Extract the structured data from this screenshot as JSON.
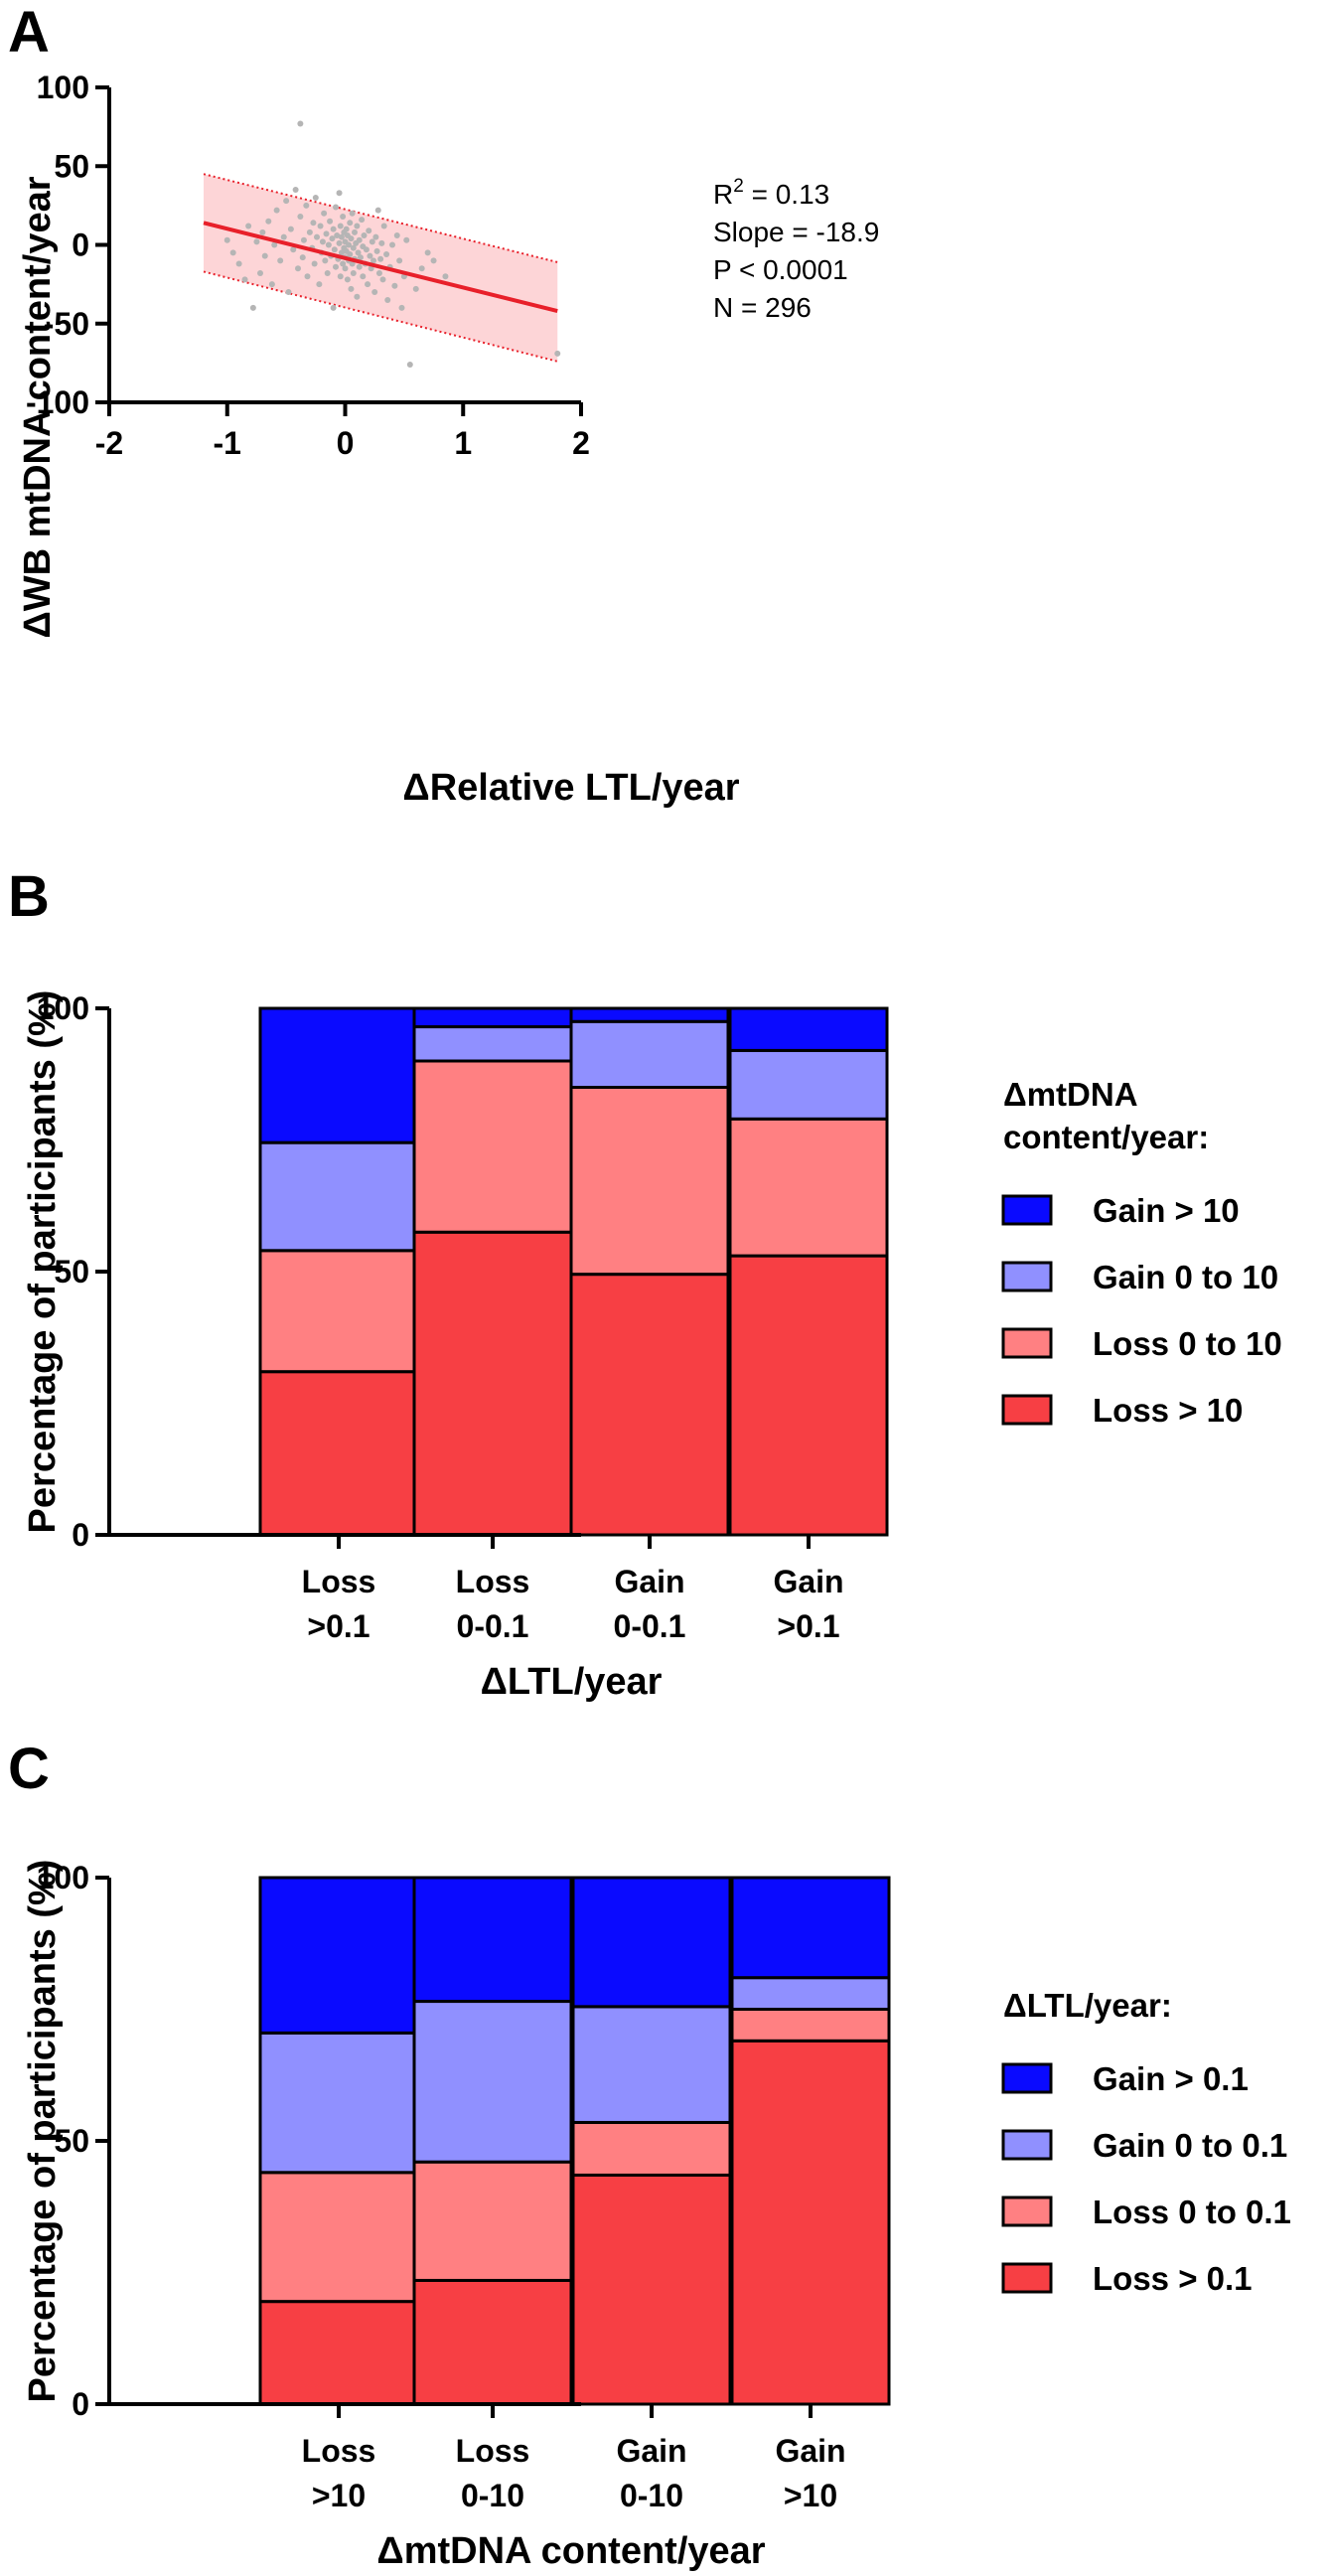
{
  "chart_data": [
    {
      "panel": "A",
      "type": "scatter",
      "xlabel": "ΔRelative LTL/year",
      "ylabel": "ΔWB mtDNA content/year",
      "xlim": [
        -2,
        2
      ],
      "ylim": [
        -100,
        100
      ],
      "xticks": [
        "-2",
        "-1",
        "0",
        "1",
        "2"
      ],
      "yticks": [
        "100",
        "50",
        "0",
        "-50",
        "-100"
      ],
      "annotations": [
        "R",
        "2",
        " = 0.13",
        "Slope = -18.9",
        "P < 0.0001",
        "N = 296"
      ],
      "fit_line": {
        "x": [
          -1.2,
          1.8
        ],
        "y": [
          14,
          -42
        ],
        "color": "#e8202a"
      },
      "prediction_band": {
        "x": [
          -1.2,
          1.8
        ],
        "upper": [
          45,
          -11
        ],
        "lower": [
          -17,
          -74
        ],
        "fill": "#fdd5d7"
      },
      "points_color": "#b5b5b5",
      "points": [
        [
          -0.38,
          77
        ],
        [
          -1.0,
          3
        ],
        [
          -0.95,
          -5
        ],
        [
          -0.9,
          -12
        ],
        [
          -0.85,
          -22
        ],
        [
          -0.82,
          12
        ],
        [
          -0.78,
          -40
        ],
        [
          -0.75,
          2
        ],
        [
          -0.72,
          -18
        ],
        [
          -0.7,
          8
        ],
        [
          -0.68,
          -7
        ],
        [
          -0.65,
          15
        ],
        [
          -0.62,
          -25
        ],
        [
          -0.6,
          0
        ],
        [
          -0.58,
          22
        ],
        [
          -0.55,
          -10
        ],
        [
          -0.52,
          5
        ],
        [
          -0.5,
          28
        ],
        [
          -0.48,
          -30
        ],
        [
          -0.46,
          10
        ],
        [
          -0.44,
          -3
        ],
        [
          -0.42,
          35
        ],
        [
          -0.4,
          -15
        ],
        [
          -0.38,
          18
        ],
        [
          -0.36,
          -8
        ],
        [
          -0.35,
          3
        ],
        [
          -0.33,
          25
        ],
        [
          -0.32,
          -20
        ],
        [
          -0.3,
          8
        ],
        [
          -0.28,
          -2
        ],
        [
          -0.27,
          14
        ],
        [
          -0.26,
          -12
        ],
        [
          -0.25,
          30
        ],
        [
          -0.24,
          5
        ],
        [
          -0.22,
          -25
        ],
        [
          -0.21,
          12
        ],
        [
          -0.2,
          -5
        ],
        [
          -0.19,
          2
        ],
        [
          -0.18,
          20
        ],
        [
          -0.17,
          -10
        ],
        [
          -0.16,
          7
        ],
        [
          -0.15,
          -18
        ],
        [
          -0.14,
          0
        ],
        [
          -0.13,
          15
        ],
        [
          -0.12,
          -7
        ],
        [
          -0.11,
          4
        ],
        [
          -0.1,
          -40
        ],
        [
          -0.1,
          10
        ],
        [
          -0.09,
          -3
        ],
        [
          -0.08,
          24
        ],
        [
          -0.08,
          -14
        ],
        [
          -0.07,
          6
        ],
        [
          -0.06,
          -9
        ],
        [
          -0.05,
          33
        ],
        [
          -0.05,
          1
        ],
        [
          -0.04,
          -20
        ],
        [
          -0.04,
          12
        ],
        [
          -0.03,
          -5
        ],
        [
          -0.03,
          5
        ],
        [
          -0.02,
          -12
        ],
        [
          -0.02,
          18
        ],
        [
          -0.01,
          -2
        ],
        [
          -0.01,
          8
        ],
        [
          0.0,
          -8
        ],
        [
          0.0,
          2
        ],
        [
          0.0,
          -15
        ],
        [
          0.01,
          10
        ],
        [
          0.01,
          -4
        ],
        [
          0.02,
          -22
        ],
        [
          0.02,
          6
        ],
        [
          0.03,
          -10
        ],
        [
          0.03,
          0
        ],
        [
          0.04,
          14
        ],
        [
          0.04,
          -6
        ],
        [
          0.05,
          -28
        ],
        [
          0.05,
          4
        ],
        [
          0.06,
          -12
        ],
        [
          0.06,
          20
        ],
        [
          0.07,
          -2
        ],
        [
          0.07,
          -18
        ],
        [
          0.08,
          8
        ],
        [
          0.08,
          -9
        ],
        [
          0.09,
          1
        ],
        [
          0.1,
          -33
        ],
        [
          0.1,
          12
        ],
        [
          0.11,
          -5
        ],
        [
          0.12,
          -14
        ],
        [
          0.12,
          3
        ],
        [
          0.13,
          -8
        ],
        [
          0.14,
          16
        ],
        [
          0.15,
          -20
        ],
        [
          0.15,
          -1
        ],
        [
          0.16,
          6
        ],
        [
          0.17,
          -12
        ],
        [
          0.18,
          -3
        ],
        [
          0.19,
          -25
        ],
        [
          0.2,
          9
        ],
        [
          0.21,
          -7
        ],
        [
          0.22,
          -15
        ],
        [
          0.23,
          2
        ],
        [
          0.24,
          -10
        ],
        [
          0.25,
          -30
        ],
        [
          0.26,
          5
        ],
        [
          0.27,
          -4
        ],
        [
          0.28,
          22
        ],
        [
          0.29,
          -18
        ],
        [
          0.3,
          -9
        ],
        [
          0.31,
          1
        ],
        [
          0.32,
          -22
        ],
        [
          0.33,
          12
        ],
        [
          0.35,
          -6
        ],
        [
          0.36,
          -35
        ],
        [
          0.38,
          -14
        ],
        [
          0.4,
          0
        ],
        [
          0.42,
          -26
        ],
        [
          0.44,
          6
        ],
        [
          0.46,
          -10
        ],
        [
          0.48,
          -40
        ],
        [
          0.5,
          -20
        ],
        [
          0.52,
          3
        ],
        [
          0.55,
          -76
        ],
        [
          0.6,
          -28
        ],
        [
          0.65,
          -15
        ],
        [
          0.7,
          -5
        ],
        [
          0.75,
          -10
        ],
        [
          0.85,
          -20
        ],
        [
          1.8,
          -69
        ]
      ]
    },
    {
      "panel": "B",
      "type": "bar",
      "stacked": true,
      "ylabel": "Percentage of participants (%)",
      "xlabel": "ΔLTL/year",
      "ylim": [
        0,
        100
      ],
      "yticks": [
        "100",
        "50",
        "0"
      ],
      "categories": [
        [
          "Loss",
          ">0.1"
        ],
        [
          "Loss",
          "0-0.1"
        ],
        [
          "Gain",
          "0-0.1"
        ],
        [
          "Gain",
          ">0.1"
        ]
      ],
      "legend_title": [
        "ΔmtDNA",
        "content/year:"
      ],
      "series": [
        {
          "name": "Loss > 10",
          "color": "#f73f44",
          "values": [
            31,
            57.5,
            49.5,
            53
          ]
        },
        {
          "name": "Loss 0 to 10",
          "color": "#ff8082",
          "values": [
            23,
            32.5,
            35.5,
            26
          ]
        },
        {
          "name": "Gain 0 to 10",
          "color": "#9090ff",
          "values": [
            20.5,
            6.5,
            12.5,
            13
          ]
        },
        {
          "name": "Gain > 10",
          "color": "#0a0aff",
          "values": [
            25.5,
            3.5,
            2.5,
            8
          ]
        }
      ]
    },
    {
      "panel": "C",
      "type": "bar",
      "stacked": true,
      "ylabel": "Percentage of participants (%)",
      "xlabel": "ΔmtDNA content/year",
      "ylim": [
        0,
        100
      ],
      "yticks": [
        "100",
        "50",
        "0"
      ],
      "categories": [
        [
          "Loss",
          ">10"
        ],
        [
          "Loss",
          "0-10"
        ],
        [
          "Gain",
          "0-10"
        ],
        [
          "Gain",
          ">10"
        ]
      ],
      "legend_title": [
        "ΔLTL/year:"
      ],
      "series": [
        {
          "name": "Loss > 0.1",
          "color": "#f73f44",
          "values": [
            19.5,
            23.5,
            43.5,
            69
          ]
        },
        {
          "name": "Loss 0 to 0.1",
          "color": "#ff8082",
          "values": [
            24.5,
            22.5,
            10,
            6
          ]
        },
        {
          "name": "Gain 0 to 0.1",
          "color": "#9090ff",
          "values": [
            26.5,
            30.5,
            22,
            6
          ]
        },
        {
          "name": "Gain > 0.1",
          "color": "#0a0aff",
          "values": [
            29.5,
            23.5,
            24.5,
            19
          ]
        }
      ]
    }
  ]
}
